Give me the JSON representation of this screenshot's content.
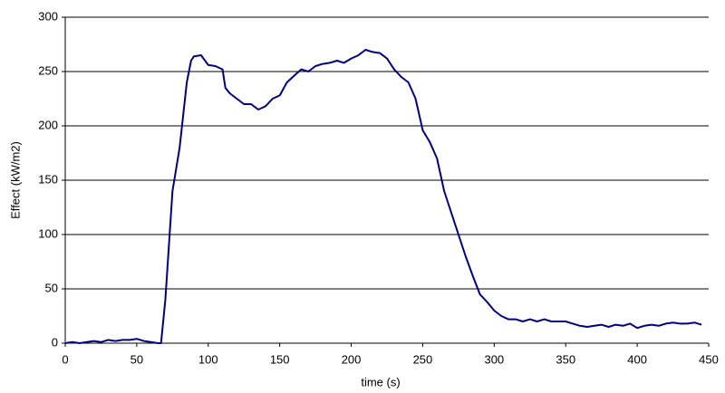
{
  "chart_data": {
    "type": "line",
    "x_label": "time (s)",
    "y_label": "Effect (kW/m2)",
    "x": [
      0,
      5,
      10,
      15,
      20,
      25,
      30,
      35,
      40,
      45,
      50,
      55,
      60,
      65,
      67,
      70,
      72,
      75,
      80,
      85,
      88,
      90,
      95,
      100,
      105,
      110,
      112,
      115,
      120,
      125,
      130,
      135,
      140,
      145,
      150,
      155,
      160,
      165,
      170,
      175,
      180,
      185,
      190,
      195,
      200,
      205,
      210,
      215,
      220,
      225,
      230,
      235,
      240,
      245,
      250,
      255,
      260,
      265,
      270,
      275,
      280,
      285,
      290,
      295,
      300,
      305,
      310,
      315,
      320,
      325,
      330,
      335,
      340,
      345,
      350,
      355,
      360,
      365,
      370,
      375,
      380,
      385,
      390,
      395,
      400,
      405,
      410,
      415,
      420,
      425,
      430,
      435,
      440,
      445
    ],
    "values": [
      0,
      1,
      0,
      1,
      2,
      1,
      3,
      2,
      3,
      3,
      4,
      2,
      1,
      0,
      0,
      40,
      80,
      140,
      180,
      240,
      260,
      264,
      265,
      256,
      255,
      252,
      235,
      230,
      225,
      220,
      220,
      215,
      218,
      225,
      228,
      240,
      246,
      252,
      250,
      255,
      257,
      258,
      260,
      258,
      262,
      265,
      270,
      268,
      267,
      262,
      252,
      245,
      240,
      225,
      196,
      185,
      170,
      140,
      120,
      100,
      80,
      62,
      45,
      38,
      30,
      25,
      22,
      22,
      20,
      22,
      20,
      22,
      20,
      20,
      20,
      18,
      16,
      15,
      16,
      17,
      15,
      17,
      16,
      18,
      14,
      16,
      17,
      16,
      18,
      19,
      18,
      18,
      19,
      17
    ],
    "color": "#000080",
    "xlim": [
      0,
      450
    ],
    "xticks": [
      0,
      50,
      100,
      150,
      200,
      250,
      300,
      350,
      400,
      450
    ],
    "ylim": [
      0,
      300
    ],
    "yticks": [
      0,
      50,
      100,
      150,
      200,
      250,
      300
    ],
    "grid": true
  }
}
